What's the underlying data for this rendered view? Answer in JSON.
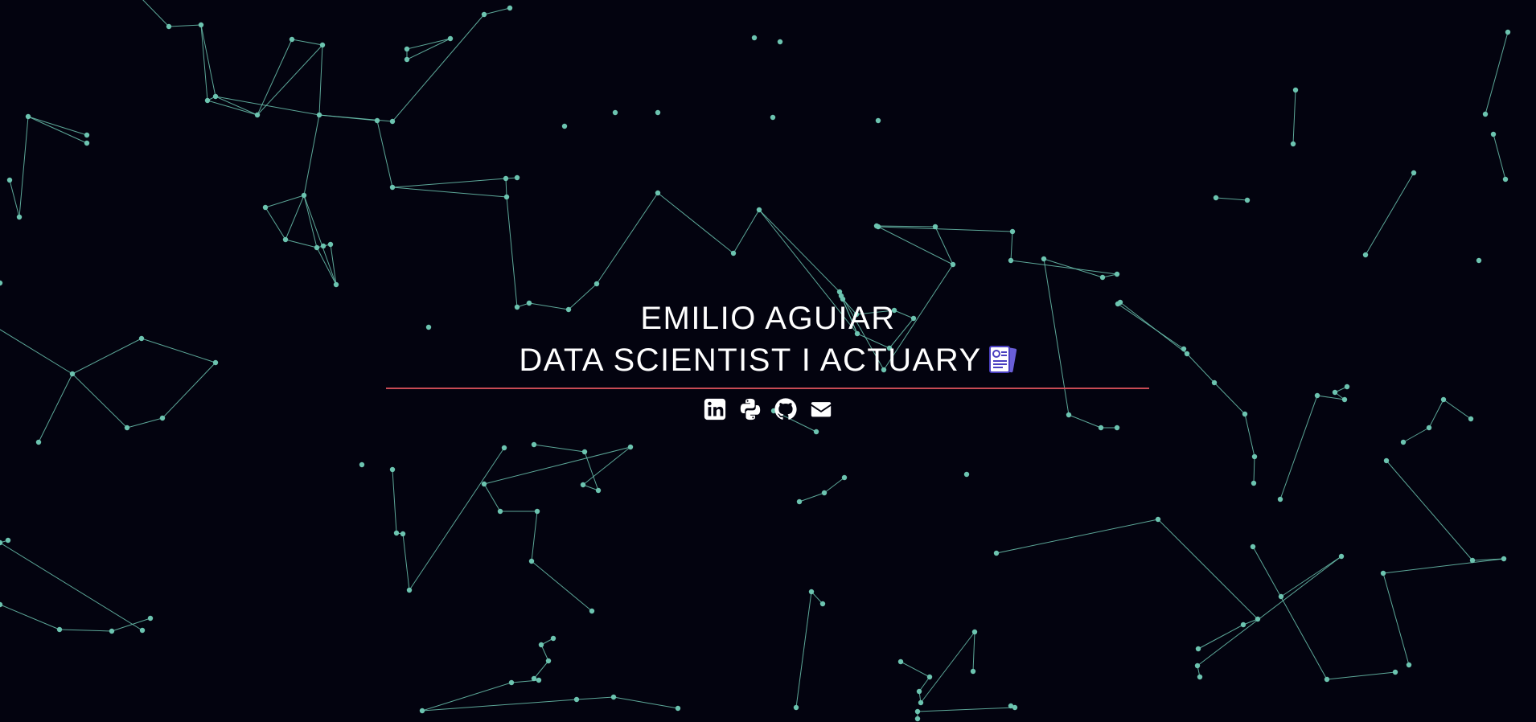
{
  "header": {
    "name": "EMILIO AGUIAR",
    "role": "DATA SCIENTIST I ACTUARY"
  },
  "icons": {
    "role_icon": "resume-document-icon",
    "social": [
      {
        "name": "linkedin-icon"
      },
      {
        "name": "python-icon"
      },
      {
        "name": "github-icon"
      },
      {
        "name": "envelope-icon"
      }
    ]
  },
  "colors": {
    "background": "#03030f",
    "particles": "#6cc4b0",
    "divider": "#c84b55",
    "text": "#ffffff"
  }
}
